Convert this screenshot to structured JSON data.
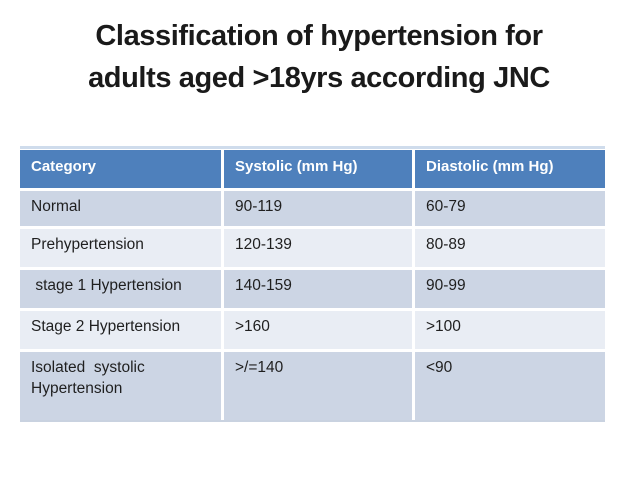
{
  "slide": {
    "title": {
      "line1": "Classification of hypertension for",
      "line2": "adults aged >18yrs according JNC"
    },
    "table": {
      "headers": {
        "category": "Category",
        "systolic": "Systolic (mm Hg)",
        "diastolic": "Diastolic (mm Hg)"
      },
      "rows": [
        {
          "category": "Normal",
          "systolic": "90-119",
          "diastolic": "60-79"
        },
        {
          "category": "Prehypertension",
          "systolic": "120-139",
          "diastolic": "80-89"
        },
        {
          "category": " stage 1 Hypertension",
          "systolic": "140-159",
          "diastolic": "90-99"
        },
        {
          "category": "Stage 2 Hypertension",
          "systolic": ">160",
          "diastolic": ">100"
        },
        {
          "category": "Isolated  systolic Hypertension",
          "systolic": ">/=140",
          "diastolic": "<90"
        }
      ]
    },
    "colors": {
      "header_bg": "#4e80bc",
      "band_dark": "#ccd5e4",
      "band_light": "#e9edf4",
      "title_text": "#1a1a1a"
    }
  }
}
